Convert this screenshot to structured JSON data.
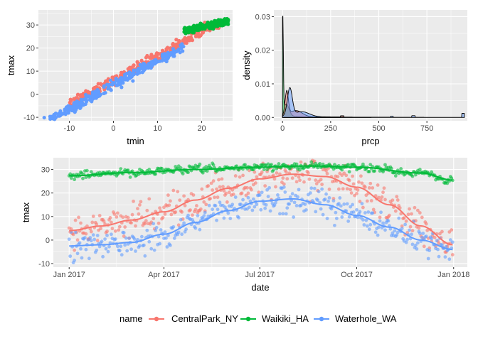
{
  "colors": {
    "CentralPark_NY": "#F8766D",
    "Waikiki_HA": "#00BA38",
    "Waterhole_WA": "#619CFF",
    "panel": "#EBEBEB"
  },
  "legend": {
    "title": "name",
    "entries": [
      "CentralPark_NY",
      "Waikiki_HA",
      "Waterhole_WA"
    ],
    "placement": "bottom"
  },
  "chart_data": [
    {
      "type": "scatter",
      "xlabel": "tmin",
      "ylabel": "tmax",
      "xlim": [
        -17,
        27
      ],
      "ylim": [
        -11.5,
        36.5
      ],
      "xticks": [
        -10,
        0,
        10,
        20
      ],
      "yticks": [
        -10,
        0,
        10,
        20,
        30
      ],
      "grid": true,
      "series": [
        {
          "name": "CentralPark_NY",
          "tmin_range": [
            -10,
            24
          ],
          "tmax_range": [
            -5,
            34
          ],
          "relation": "tmax ≈ 1.05·tmin + 6"
        },
        {
          "name": "Waikiki_HA",
          "tmin_range": [
            16,
            26
          ],
          "tmax_range": [
            25,
            34
          ],
          "relation": "tmax ≈ 0.45·tmin + 20"
        },
        {
          "name": "Waterhole_WA",
          "tmin_range": [
            -16,
            16
          ],
          "tmax_range": [
            -10,
            27
          ],
          "relation": "tmax ≈ 1.05·tmin + 4"
        }
      ]
    },
    {
      "type": "area",
      "xlabel": "prcp",
      "ylabel": "density",
      "xlim": [
        -45,
        960
      ],
      "ylim": [
        -0.001,
        0.032
      ],
      "xticks": [
        0,
        250,
        500,
        750
      ],
      "yticks": [
        0,
        0.01,
        0.02,
        0.03
      ],
      "ytick_labels": [
        "0.00",
        "0.01",
        "0.02",
        "0.03"
      ],
      "grid": true,
      "series": [
        {
          "name": "Waikiki_HA",
          "peak_prcp": 0,
          "peak_density": 0.03
        },
        {
          "name": "CentralPark_NY",
          "peak_prcp": 25,
          "peak_density": 0.0075
        },
        {
          "name": "Waterhole_WA",
          "peak_prcp": 38,
          "peak_density": 0.0083
        }
      ]
    },
    {
      "type": "line",
      "xlabel": "date",
      "ylabel": "tmax",
      "xlim": [
        "2016-12-17",
        "2018-01-14"
      ],
      "ylim": [
        -11.5,
        35
      ],
      "xticks": [
        "2017-01-01",
        "2017-04-01",
        "2017-07-01",
        "2017-10-01",
        "2018-01-01"
      ],
      "xtick_labels": [
        "Jan 2017",
        "Apr 2017",
        "Jul 2017",
        "Oct 2017",
        "Jan 2018"
      ],
      "yticks": [
        -10,
        0,
        10,
        20,
        30
      ],
      "grid": true,
      "smooth": true,
      "series": [
        {
          "name": "CentralPark_NY",
          "x": [
            "2017-01-01",
            "2017-02-01",
            "2017-03-01",
            "2017-04-01",
            "2017-05-01",
            "2017-06-01",
            "2017-07-01",
            "2017-08-01",
            "2017-09-01",
            "2017-10-01",
            "2017-11-01",
            "2017-12-01",
            "2017-12-31"
          ],
          "y": [
            4,
            6,
            8.5,
            12,
            17,
            22,
            26,
            28,
            27,
            22.5,
            15,
            6,
            -2
          ]
        },
        {
          "name": "Waikiki_HA",
          "x": [
            "2017-01-01",
            "2017-03-01",
            "2017-05-01",
            "2017-07-01",
            "2017-08-15",
            "2017-10-01",
            "2017-12-01",
            "2017-12-31"
          ],
          "y": [
            27.3,
            28.7,
            30,
            31,
            31.5,
            31,
            28.5,
            25.5
          ]
        },
        {
          "name": "Waterhole_WA",
          "x": [
            "2017-01-01",
            "2017-02-01",
            "2017-03-01",
            "2017-04-01",
            "2017-05-01",
            "2017-06-01",
            "2017-07-01",
            "2017-08-01",
            "2017-09-01",
            "2017-10-01",
            "2017-11-01",
            "2017-12-01",
            "2017-12-31"
          ],
          "y": [
            -2.5,
            -2,
            -1,
            2.5,
            7.5,
            12.5,
            16.5,
            17.5,
            15,
            10.5,
            5.5,
            0,
            -4
          ]
        }
      ]
    }
  ]
}
